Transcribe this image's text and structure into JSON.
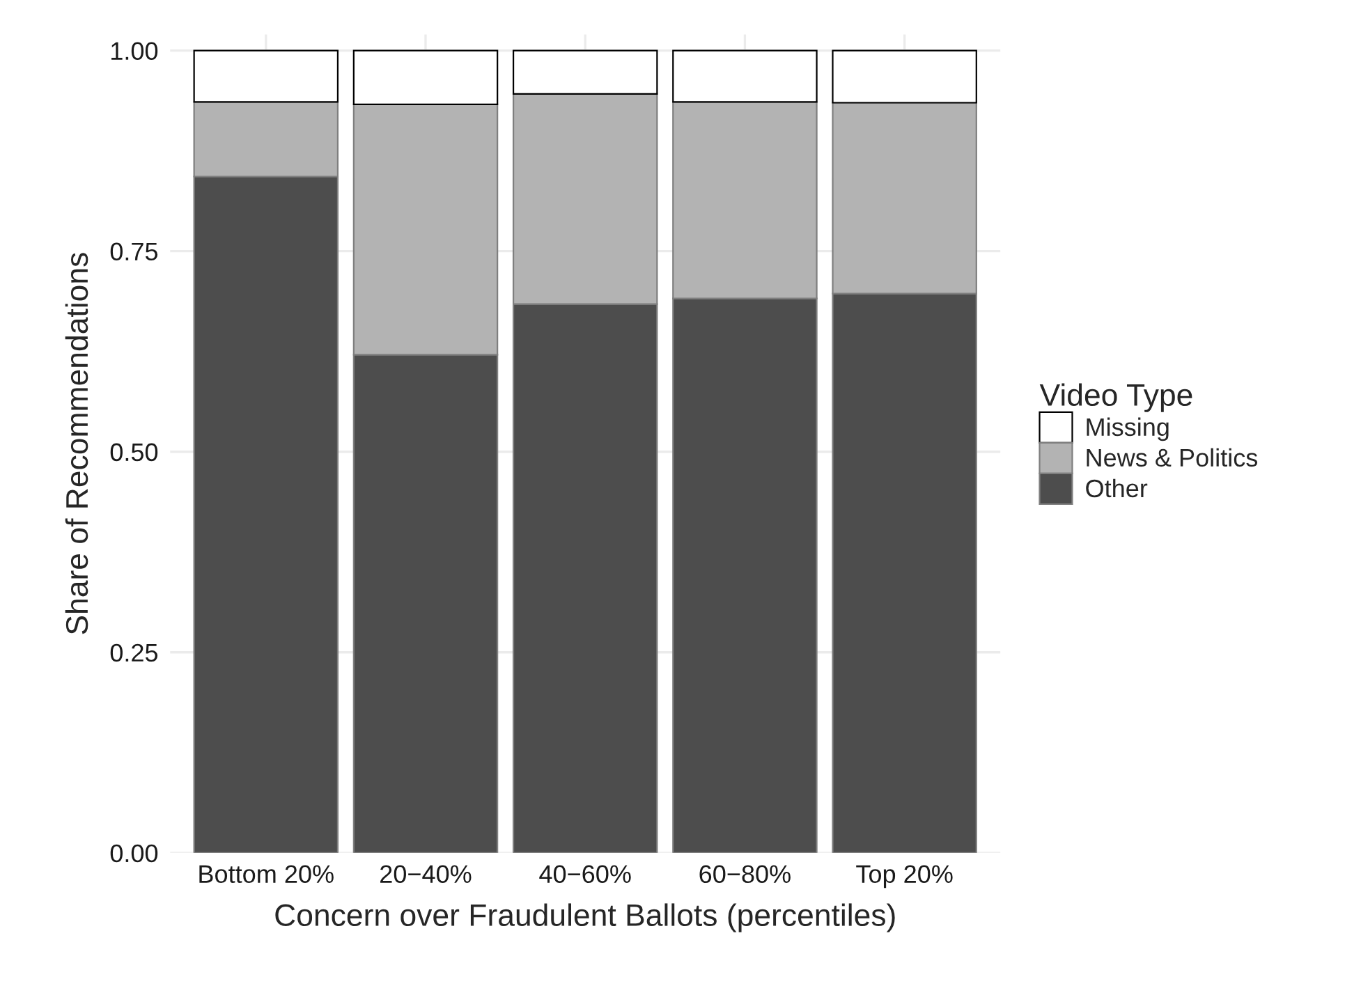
{
  "chart_data": {
    "type": "bar",
    "stacked": true,
    "xlabel": "Concern over Fraudulent Ballots (percentiles)",
    "ylabel": "Share of Recommendations",
    "legend_title": "Video Type",
    "legend": "right",
    "grid": true,
    "categories": [
      "Bottom 20%",
      "20−40%",
      "40−60%",
      "60−80%",
      "Top 20%"
    ],
    "ylim": [
      0,
      1.02
    ],
    "yticks": [
      {
        "value": 0,
        "label": "0.00"
      },
      {
        "value": 0.25,
        "label": "0.25"
      },
      {
        "value": 0.5,
        "label": "0.50"
      },
      {
        "value": 0.75,
        "label": "0.75"
      },
      {
        "value": 1,
        "label": "1.00"
      }
    ],
    "series": [
      {
        "name": "Other",
        "color": "#4d4d4d",
        "values": [
          0.843,
          0.621,
          0.684,
          0.691,
          0.697
        ]
      },
      {
        "name": "News & Politics",
        "color": "#b3b3b3",
        "values": [
          0.093,
          0.312,
          0.262,
          0.245,
          0.238
        ]
      },
      {
        "name": "Missing",
        "color": "#ffffff",
        "values": [
          0.064,
          0.067,
          0.054,
          0.064,
          0.065
        ]
      }
    ]
  }
}
